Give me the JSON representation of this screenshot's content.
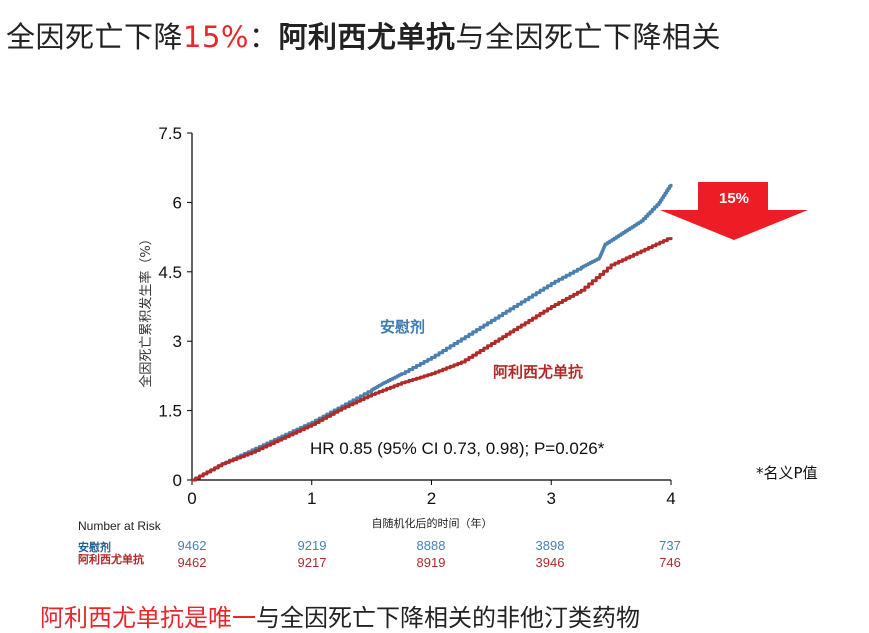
{
  "title": {
    "part1": "全因死亡下降",
    "percent": "15%",
    "part2": "：",
    "drug": "阿利西尤单抗",
    "part3": "与全因死亡下降相关"
  },
  "colors": {
    "placebo": "#4a7fb0",
    "alirocumab": "#b02a2a",
    "arrow": "#ee1c25",
    "accent": "#e8262b"
  },
  "chart_data": {
    "type": "line",
    "title": "",
    "xlabel": "自随机化后的时间（年）",
    "ylabel": "全因死亡累积发生率（%）",
    "xlim": [
      0,
      4
    ],
    "ylim": [
      0,
      7.5
    ],
    "xticks": [
      "0",
      "1",
      "2",
      "3",
      "4"
    ],
    "yticks": [
      "0",
      "1.5",
      "3",
      "4.5",
      "6",
      "7.5"
    ],
    "series": [
      {
        "name": "安慰剂",
        "x": [
          0,
          0.25,
          0.5,
          0.75,
          1.0,
          1.25,
          1.5,
          1.6,
          1.75,
          2.0,
          2.25,
          2.5,
          2.75,
          3.0,
          3.25,
          3.4,
          3.45,
          3.6,
          3.75,
          3.9,
          4.0
        ],
        "values": [
          0,
          0.35,
          0.65,
          0.95,
          1.25,
          1.6,
          1.95,
          2.1,
          2.3,
          2.65,
          3.05,
          3.45,
          3.85,
          4.25,
          4.6,
          4.8,
          5.1,
          5.35,
          5.6,
          6.0,
          6.4
        ]
      },
      {
        "name": "阿利西尤单抗",
        "x": [
          0,
          0.25,
          0.5,
          0.75,
          1.0,
          1.25,
          1.5,
          1.75,
          2.0,
          2.25,
          2.5,
          2.75,
          3.0,
          3.25,
          3.5,
          3.75,
          4.0
        ],
        "values": [
          0,
          0.35,
          0.6,
          0.9,
          1.2,
          1.55,
          1.85,
          2.1,
          2.3,
          2.55,
          2.95,
          3.35,
          3.75,
          4.1,
          4.65,
          4.95,
          5.25
        ]
      }
    ],
    "annotations": {
      "hr": "HR 0.85 (95% CI 0.73, 0.98); P=0.026*",
      "arrow": "15%",
      "footnote": "*名义P值"
    }
  },
  "risk_table": {
    "title": "Number at Risk",
    "rows": [
      {
        "label": "安慰剂",
        "values": [
          "9462",
          "9219",
          "8888",
          "3898",
          "737"
        ]
      },
      {
        "label": "阿利西尤单抗",
        "values": [
          "9462",
          "9217",
          "8919",
          "3946",
          "746"
        ]
      }
    ]
  },
  "caption": {
    "highlight": "阿利西尤单抗是唯一",
    "rest": "与全因死亡下降相关的非他汀类药物"
  }
}
